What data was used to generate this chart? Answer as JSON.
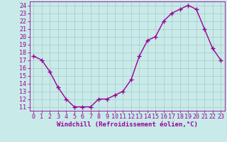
{
  "x": [
    0,
    1,
    2,
    3,
    4,
    5,
    6,
    7,
    8,
    9,
    10,
    11,
    12,
    13,
    14,
    15,
    16,
    17,
    18,
    19,
    20,
    21,
    22,
    23
  ],
  "y": [
    17.5,
    17,
    15.5,
    13.5,
    12,
    11,
    11,
    11,
    12,
    12,
    12.5,
    13,
    14.5,
    17.5,
    19.5,
    20,
    22,
    23,
    23.5,
    24,
    23.5,
    21,
    18.5,
    17
  ],
  "line_color": "#990099",
  "marker": "+",
  "marker_color": "#990099",
  "bg_color": "#c8eae8",
  "grid_color": "#b0cece",
  "xlabel": "Windchill (Refroidissement éolien,°C)",
  "xlabel_color": "#990099",
  "tick_color": "#990099",
  "label_color": "#990099",
  "ylim": [
    10.5,
    24.5
  ],
  "xlim": [
    -0.5,
    23.5
  ],
  "yticks": [
    11,
    12,
    13,
    14,
    15,
    16,
    17,
    18,
    19,
    20,
    21,
    22,
    23,
    24
  ],
  "xticks": [
    0,
    1,
    2,
    3,
    4,
    5,
    6,
    7,
    8,
    9,
    10,
    11,
    12,
    13,
    14,
    15,
    16,
    17,
    18,
    19,
    20,
    21,
    22,
    23
  ],
  "linewidth": 1.0,
  "markersize": 4,
  "font_family": "monospace",
  "tick_fontsize": 6,
  "xlabel_fontsize": 6.5
}
